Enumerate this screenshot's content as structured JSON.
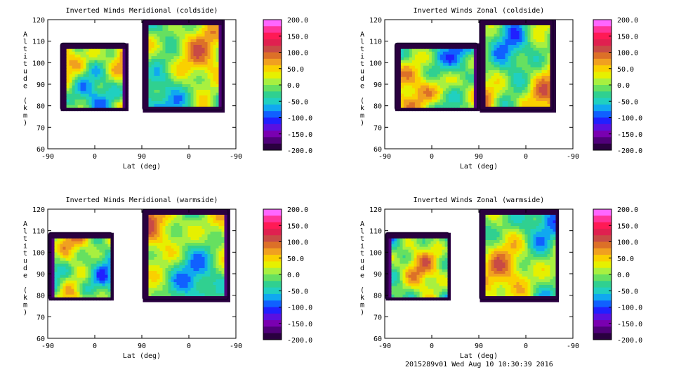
{
  "footer": "2015289v01 Wed Aug 10 10:30:39 2016",
  "colorbar": {
    "ticks": [
      "200.0",
      "150.0",
      "100.0",
      "50.0",
      "0.0",
      "-50.0",
      "-100.0",
      "-150.0",
      "-200.0"
    ],
    "colors": [
      "#ff66ff",
      "#ff3399",
      "#ff1a55",
      "#e02050",
      "#c84a45",
      "#dc7028",
      "#f0a020",
      "#fad000",
      "#e6f000",
      "#a8f040",
      "#66e060",
      "#30d090",
      "#20d0c0",
      "#10a8f0",
      "#1060ff",
      "#2020ff",
      "#5a10e0",
      "#7a00b0",
      "#50007a",
      "#2a0040"
    ]
  },
  "chart_data": [
    {
      "type": "heatmap",
      "title": "Inverted Winds Meridional (coldside)",
      "xlabel": "Lat (deg)",
      "ylabel": "Altitude (km)",
      "xticks": [
        "-90",
        "0",
        "90",
        "0",
        "-90"
      ],
      "yticks": [
        60,
        70,
        80,
        90,
        100,
        110,
        120
      ],
      "ylim": [
        60,
        120
      ],
      "zlim": [
        -200,
        200
      ],
      "segments": [
        {
          "x_start": -90,
          "x_end": 90,
          "lat_min": -65,
          "lat_max": 60,
          "alt_bottom": 78,
          "alt_top": 109
        },
        {
          "x_start": 90,
          "x_end": -90,
          "lat_min": -65,
          "lat_max": 88,
          "alt_bottom": 78,
          "alt_top": 120
        }
      ]
    },
    {
      "type": "heatmap",
      "title": "Inverted Winds Zonal (coldside)",
      "xlabel": "Lat (deg)",
      "ylabel": "Altitude (km)",
      "xticks": [
        "-90",
        "0",
        "90",
        "0",
        "-90"
      ],
      "yticks": [
        60,
        70,
        80,
        90,
        100,
        110,
        120
      ],
      "ylim": [
        60,
        120
      ],
      "zlim": [
        -200,
        200
      ],
      "segments": [
        {
          "x_start": -90,
          "x_end": 90,
          "lat_min": -70,
          "lat_max": 88,
          "alt_bottom": 78,
          "alt_top": 109
        },
        {
          "x_start": 90,
          "x_end": -90,
          "lat_min": -52,
          "lat_max": 88,
          "alt_bottom": 78,
          "alt_top": 120
        }
      ]
    },
    {
      "type": "heatmap",
      "title": "Inverted Winds Meridional (warmside)",
      "xlabel": "Lat (deg)",
      "ylabel": "Altitude (km)",
      "xticks": [
        "-90",
        "0",
        "90",
        "0",
        "-90"
      ],
      "yticks": [
        60,
        70,
        80,
        90,
        100,
        110,
        120
      ],
      "ylim": [
        60,
        120
      ],
      "zlim": [
        -200,
        200
      ],
      "segments": [
        {
          "x_start": -90,
          "x_end": 90,
          "lat_min": -88,
          "lat_max": 33,
          "alt_bottom": 78,
          "alt_top": 109
        },
        {
          "x_start": 90,
          "x_end": -90,
          "lat_min": -75,
          "lat_max": 88,
          "alt_bottom": 78,
          "alt_top": 120
        }
      ]
    },
    {
      "type": "heatmap",
      "title": "Inverted Winds Zonal (warmside)",
      "xlabel": "Lat (deg)",
      "ylabel": "Altitude (km)",
      "xticks": [
        "-90",
        "0",
        "90",
        "0",
        "-90"
      ],
      "yticks": [
        60,
        70,
        80,
        90,
        100,
        110,
        120
      ],
      "ylim": [
        60,
        120
      ],
      "zlim": [
        -200,
        200
      ],
      "segments": [
        {
          "x_start": -90,
          "x_end": 90,
          "lat_min": -88,
          "lat_max": 33,
          "alt_bottom": 78,
          "alt_top": 109
        },
        {
          "x_start": 90,
          "x_end": -90,
          "lat_min": -62,
          "lat_max": 88,
          "alt_bottom": 78,
          "alt_top": 120
        }
      ]
    }
  ]
}
